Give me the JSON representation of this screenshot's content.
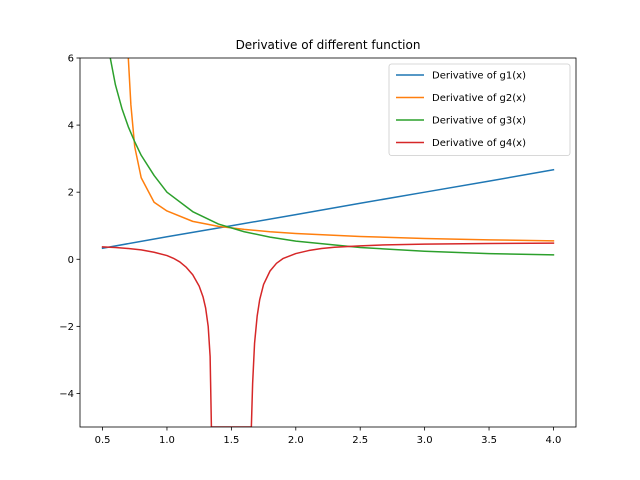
{
  "chart_data": {
    "type": "line",
    "title": "Derivative of different function",
    "xlabel": "",
    "ylabel": "",
    "xlim": [
      0.325,
      4.175
    ],
    "ylim": [
      -5,
      6
    ],
    "x_ticks": [
      0.5,
      1.0,
      1.5,
      2.0,
      2.5,
      3.0,
      3.5,
      4.0
    ],
    "x_tick_labels": [
      "0.5",
      "1.0",
      "1.5",
      "2.0",
      "2.5",
      "3.0",
      "3.5",
      "4.0"
    ],
    "y_ticks": [
      -4,
      -2,
      0,
      2,
      4,
      6
    ],
    "y_tick_labels": [
      "−4",
      "−2",
      "0",
      "2",
      "4",
      "6"
    ],
    "grid": false,
    "legend_position": "upper right",
    "series": [
      {
        "name": "Derivative of g1(x)",
        "color": "#1f77b4",
        "x": [
          0.5,
          1.0,
          1.5,
          2.0,
          2.5,
          3.0,
          3.5,
          4.0
        ],
        "y": [
          0.33,
          0.67,
          1.0,
          1.33,
          1.67,
          2.0,
          2.33,
          2.67
        ]
      },
      {
        "name": "Derivative of g2(x)",
        "color": "#ff7f0e",
        "x": [
          0.7,
          0.72,
          0.75,
          0.8,
          0.9,
          1.0,
          1.2,
          1.4,
          1.6,
          1.8,
          2.0,
          2.5,
          3.0,
          3.5,
          4.0
        ],
        "y": [
          6.0,
          4.6,
          3.35,
          2.43,
          1.7,
          1.44,
          1.13,
          0.98,
          0.89,
          0.82,
          0.77,
          0.68,
          0.62,
          0.58,
          0.55
        ]
      },
      {
        "name": "Derivative of g3(x)",
        "color": "#2ca02c",
        "x": [
          0.56,
          0.6,
          0.65,
          0.7,
          0.75,
          0.8,
          0.9,
          1.0,
          1.2,
          1.4,
          1.6,
          1.8,
          2.0,
          2.5,
          3.0,
          3.5,
          4.0
        ],
        "y": [
          6.0,
          5.2,
          4.5,
          3.95,
          3.5,
          3.1,
          2.5,
          2.0,
          1.42,
          1.05,
          0.82,
          0.66,
          0.54,
          0.35,
          0.24,
          0.17,
          0.13
        ]
      },
      {
        "name": "Derivative of g4(x)",
        "color": "#d62728",
        "x": [
          0.5,
          0.6,
          0.7,
          0.8,
          0.9,
          1.0,
          1.05,
          1.1,
          1.15,
          1.2,
          1.25,
          1.28,
          1.3,
          1.32,
          1.335,
          1.345,
          1.655,
          1.665,
          1.68,
          1.7,
          1.72,
          1.75,
          1.8,
          1.85,
          1.9,
          2.0,
          2.1,
          2.2,
          2.3,
          2.5,
          2.7,
          3.0,
          3.5,
          4.0
        ],
        "y": [
          0.37,
          0.35,
          0.32,
          0.28,
          0.21,
          0.11,
          0.03,
          -0.08,
          -0.24,
          -0.46,
          -0.8,
          -1.12,
          -1.45,
          -2.0,
          -2.9,
          -5.0,
          -5.0,
          -3.7,
          -2.5,
          -1.7,
          -1.2,
          -0.75,
          -0.35,
          -0.12,
          0.02,
          0.17,
          0.26,
          0.32,
          0.36,
          0.4,
          0.43,
          0.45,
          0.47,
          0.48
        ]
      }
    ]
  }
}
